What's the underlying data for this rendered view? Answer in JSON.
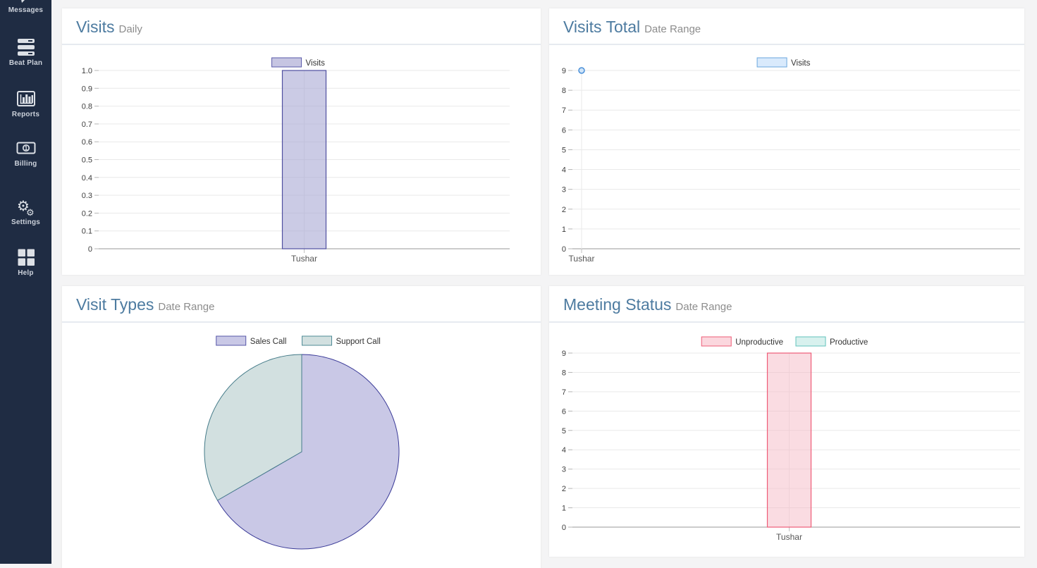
{
  "sidebar": {
    "items": [
      {
        "label": "Messages",
        "icon": "message-icon"
      },
      {
        "label": "Beat Plan",
        "icon": "server-icon"
      },
      {
        "label": "Reports",
        "icon": "bar-chart-icon"
      },
      {
        "label": "Billing",
        "icon": "money-bill-icon"
      },
      {
        "label": "Settings",
        "icon": "gears-icon"
      },
      {
        "label": "Help",
        "icon": "grid-icon"
      }
    ]
  },
  "colors": {
    "sidebar_bg": "#1f2c43",
    "page_bg": "#f4f4f5",
    "card_bg": "#ffffff",
    "title": "#4d7ba0",
    "subtitle": "#8d8d8d"
  },
  "chart_data": [
    {
      "type": "bar",
      "title": "Visits",
      "subtitle": "Daily",
      "categories": [
        "Tushar"
      ],
      "ylim": [
        0,
        1.0
      ],
      "ymax": 1,
      "ytick_labels": [
        "0",
        "0.1",
        "0.2",
        "0.3",
        "0.4",
        "0.5",
        "0.6",
        "0.7",
        "0.8",
        "0.9",
        "1.0"
      ],
      "legend": [
        {
          "label": "Visits",
          "fill": "#c6c5e2",
          "border": "#5b5baa"
        }
      ],
      "series": [
        {
          "name": "Visits",
          "values": [
            1
          ],
          "fill": "#a9a8d4",
          "fill_opacity": 0.6,
          "border": "#4f4fa0"
        }
      ]
    },
    {
      "type": "scatter",
      "title": "Visits Total",
      "subtitle": "Date Range",
      "categories": [
        "Tushar"
      ],
      "ylim": [
        0,
        9
      ],
      "ymax": 9,
      "ytick_labels": [
        "0",
        "1",
        "2",
        "3",
        "4",
        "5",
        "6",
        "7",
        "8",
        "9"
      ],
      "legend": [
        {
          "label": "Visits",
          "fill": "#d9eafc",
          "border": "#6ba7de"
        }
      ],
      "series": [
        {
          "name": "Visits",
          "values": [
            9
          ],
          "fill": "#cfe4f8",
          "border": "#4a90d9"
        }
      ]
    },
    {
      "type": "pie",
      "title": "Visit Types",
      "subtitle": "Date Range",
      "legend": [
        {
          "label": "Sales Call",
          "fill": "#c9c8e6",
          "border": "#5757a8"
        },
        {
          "label": "Support Call",
          "fill": "#d2e0e0",
          "border": "#4f8b96"
        }
      ],
      "slices": [
        {
          "name": "Sales Call",
          "value": 6,
          "fill": "#c9c8e6",
          "border": "#3b3b98"
        },
        {
          "name": "Support Call",
          "value": 3,
          "fill": "#d2e0e0",
          "border": "#467c8a"
        }
      ]
    },
    {
      "type": "bar",
      "title": "Meeting Status",
      "subtitle": "Date Range",
      "categories": [
        "Tushar"
      ],
      "ylim": [
        0,
        9
      ],
      "ymax": 9,
      "ytick_labels": [
        "0",
        "1",
        "2",
        "3",
        "4",
        "5",
        "6",
        "7",
        "8",
        "9"
      ],
      "legend": [
        {
          "label": "Unproductive",
          "fill": "#fbd7de",
          "border": "#ee5c77"
        },
        {
          "label": "Productive",
          "fill": "#d8f1ee",
          "border": "#62c3bc"
        }
      ],
      "series": [
        {
          "name": "Unproductive",
          "values": [
            9
          ],
          "fill": "#f6b9c6",
          "fill_opacity": 0.5,
          "border": "#ee5c77"
        },
        {
          "name": "Productive",
          "values": [
            0
          ],
          "fill": "#bfe9e4",
          "fill_opacity": 0.5,
          "border": "#62c3bc"
        }
      ]
    }
  ]
}
